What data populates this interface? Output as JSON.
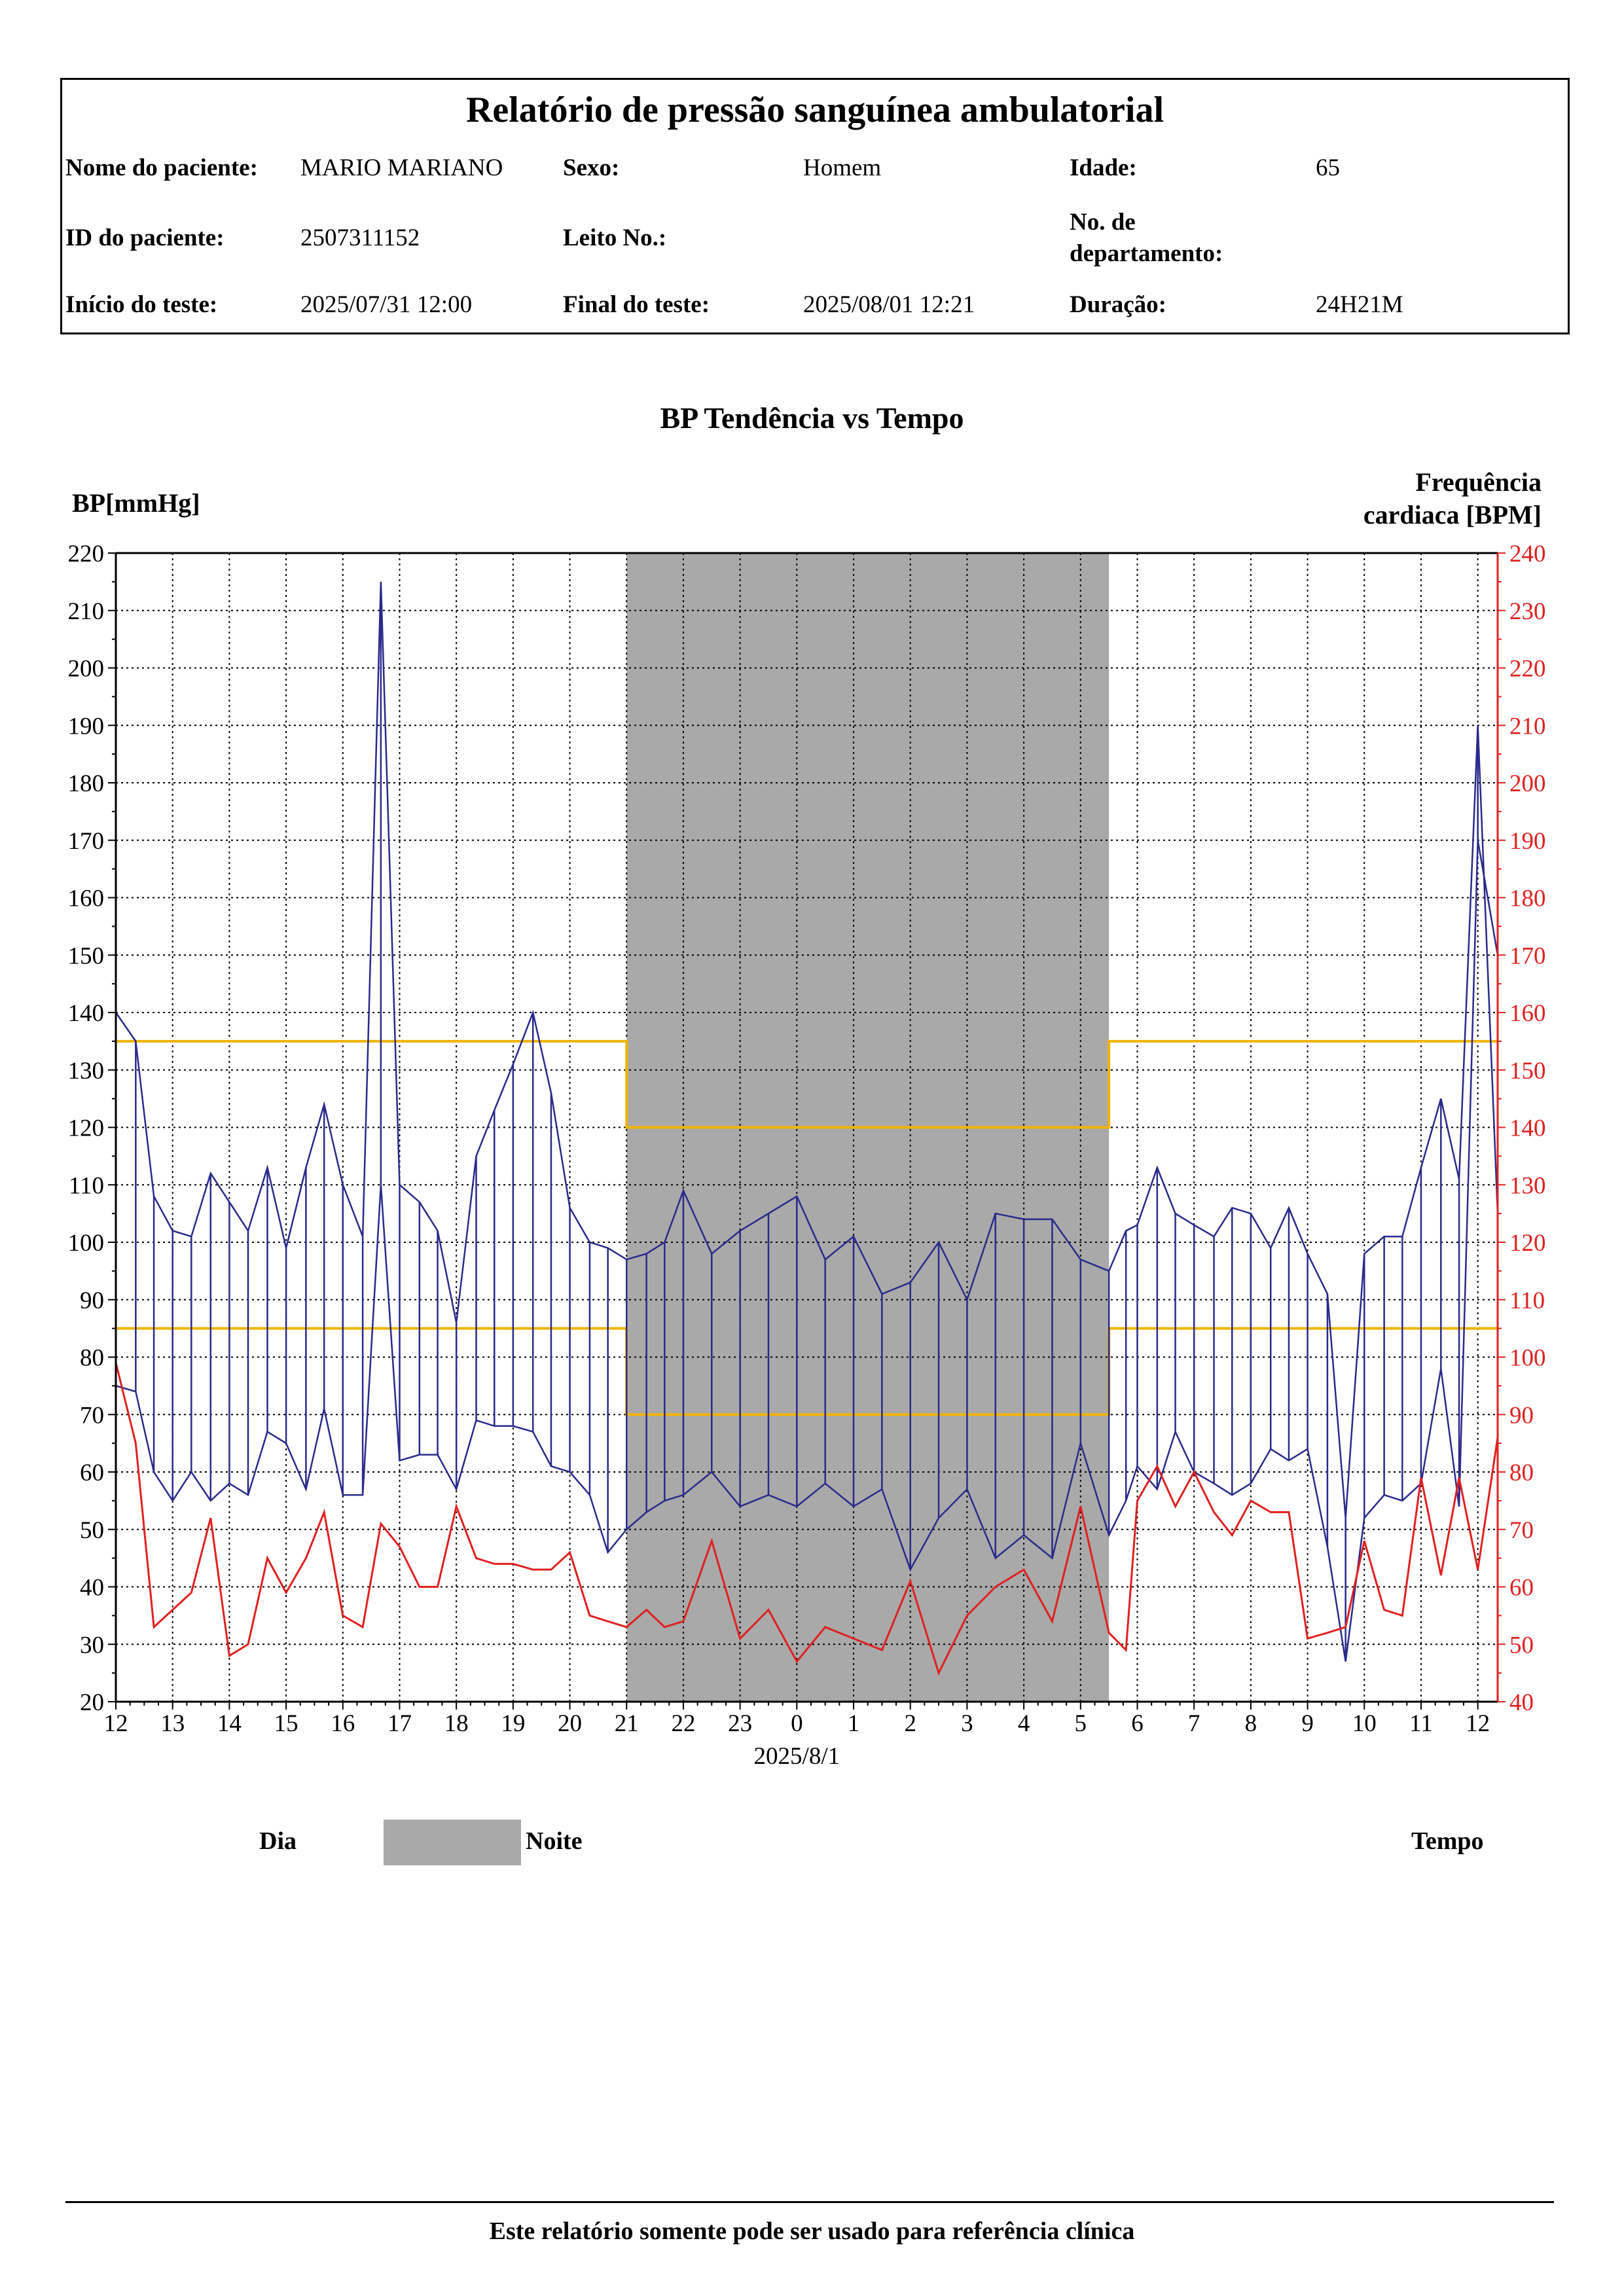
{
  "report": {
    "title": "Relatório de pressão sanguínea ambulatorial",
    "patient_name_label": "Nome do paciente:",
    "patient_name": "MARIO MARIANO",
    "sex_label": "Sexo:",
    "sex": "Homem",
    "age_label": "Idade:",
    "age": "65",
    "patient_id_label": "ID do paciente:",
    "patient_id": "2507311152",
    "bed_label": "Leito No.:",
    "bed": "",
    "department_label_1": "No. de",
    "department_label_2": "departamento:",
    "department": "",
    "start_label": "Início do teste:",
    "start": "2025/07/31 12:00",
    "end_label": "Final do teste:",
    "end": "2025/08/01 12:21",
    "duration_label": "Duração:",
    "duration": "24H21M"
  },
  "chart_data": {
    "type": "line",
    "title": "BP Tendência vs Tempo",
    "ylabel": "BP[mmHg]",
    "ylabel_right_1": "Frequência",
    "ylabel_right_2": "cardiaca [BPM]",
    "xlabel": "Tempo",
    "date_label": "2025/8/1",
    "ylim": [
      20,
      220
    ],
    "ylim_right": [
      40,
      240
    ],
    "xlim": [
      0,
      24.35
    ],
    "x_ticks": [
      "12",
      "13",
      "14",
      "15",
      "16",
      "17",
      "18",
      "19",
      "20",
      "21",
      "22",
      "23",
      "0",
      "1",
      "2",
      "3",
      "4",
      "5",
      "6",
      "7",
      "8",
      "9",
      "10",
      "11",
      "12"
    ],
    "y_ticks": [
      20,
      30,
      40,
      50,
      60,
      70,
      80,
      90,
      100,
      110,
      120,
      130,
      140,
      150,
      160,
      170,
      180,
      190,
      200,
      210,
      220
    ],
    "y_ticks_right": [
      40,
      50,
      60,
      70,
      80,
      90,
      100,
      110,
      120,
      130,
      140,
      150,
      160,
      170,
      180,
      190,
      200,
      210,
      220,
      230,
      240
    ],
    "grid": true,
    "night_band": [
      9.0,
      17.5
    ],
    "thresholds": {
      "day_systolic": 135,
      "day_diastolic": 85,
      "night_systolic": 120,
      "night_diastolic": 70
    },
    "colors": {
      "bp": "#2a2a8c",
      "hr": "#e02020",
      "threshold": "#f0b400",
      "night": "#a9a9a9",
      "right_axis": "#e02020"
    },
    "series": [
      {
        "key": "systolic",
        "x": [
          0,
          0.35,
          0.67,
          1.0,
          1.33,
          1.67,
          2.0,
          2.33,
          2.67,
          3.0,
          3.35,
          3.67,
          4.0,
          4.35,
          4.67,
          5.0,
          5.35,
          5.67,
          6.0,
          6.35,
          6.67,
          7.0,
          7.35,
          7.67,
          8.0,
          8.35,
          8.67,
          9.0,
          9.35,
          9.67,
          10.0,
          10.5,
          11.0,
          11.5,
          12.0,
          12.5,
          13.0,
          13.5,
          14.0,
          14.5,
          15.0,
          15.5,
          16.0,
          16.5,
          17.0,
          17.5,
          17.8,
          18.0,
          18.35,
          18.67,
          19.0,
          19.35,
          19.67,
          20.0,
          20.35,
          20.67,
          21.0,
          21.35,
          21.67,
          22.0,
          22.35,
          22.67,
          23.0,
          23.35,
          23.67,
          24.0,
          24.35
        ],
        "values": [
          140,
          135,
          108,
          102,
          101,
          112,
          107,
          102,
          113,
          99,
          113,
          124,
          110,
          101,
          215,
          110,
          107,
          102,
          86,
          115,
          123,
          131,
          140,
          126,
          106,
          100,
          99,
          97,
          98,
          100,
          109,
          98,
          102,
          105,
          108,
          97,
          101,
          91,
          93,
          100,
          90,
          105,
          104,
          104,
          97,
          95,
          102,
          103,
          113,
          105,
          103,
          101,
          106,
          105,
          99,
          106,
          98,
          91,
          52,
          98,
          101,
          101,
          113,
          125,
          111,
          190,
          105
        ]
      },
      {
        "key": "diastolic",
        "x": [
          0,
          0.35,
          0.67,
          1.0,
          1.33,
          1.67,
          2.0,
          2.33,
          2.67,
          3.0,
          3.35,
          3.67,
          4.0,
          4.35,
          4.67,
          5.0,
          5.35,
          5.67,
          6.0,
          6.35,
          6.67,
          7.0,
          7.35,
          7.67,
          8.0,
          8.35,
          8.67,
          9.0,
          9.35,
          9.67,
          10.0,
          10.5,
          11.0,
          11.5,
          12.0,
          12.5,
          13.0,
          13.5,
          14.0,
          14.5,
          15.0,
          15.5,
          16.0,
          16.5,
          17.0,
          17.5,
          17.8,
          18.0,
          18.35,
          18.67,
          19.0,
          19.35,
          19.67,
          20.0,
          20.35,
          20.67,
          21.0,
          21.35,
          21.67,
          22.0,
          22.35,
          22.67,
          23.0,
          23.35,
          23.67,
          24.0,
          24.35
        ],
        "values": [
          75,
          74,
          60,
          55,
          60,
          55,
          58,
          56,
          67,
          65,
          57,
          71,
          56,
          56,
          110,
          62,
          63,
          63,
          57,
          69,
          68,
          68,
          67,
          61,
          60,
          56,
          46,
          50,
          53,
          55,
          56,
          60,
          54,
          56,
          54,
          58,
          54,
          57,
          43,
          52,
          57,
          45,
          49,
          45,
          65,
          49,
          55,
          61,
          57,
          67,
          60,
          58,
          56,
          58,
          64,
          62,
          64,
          47,
          27,
          52,
          56,
          55,
          58,
          78,
          54,
          170,
          150
        ]
      },
      {
        "key": "heart_rate",
        "x": [
          0,
          0.35,
          0.67,
          1.0,
          1.33,
          1.67,
          2.0,
          2.33,
          2.67,
          3.0,
          3.35,
          3.67,
          4.0,
          4.35,
          4.67,
          5.0,
          5.35,
          5.67,
          6.0,
          6.35,
          6.67,
          7.0,
          7.35,
          7.67,
          8.0,
          8.35,
          8.67,
          9.0,
          9.35,
          9.67,
          10.0,
          10.5,
          11.0,
          11.5,
          12.0,
          12.5,
          13.0,
          13.5,
          14.0,
          14.5,
          15.0,
          15.5,
          16.0,
          16.5,
          17.0,
          17.5,
          17.8,
          18.0,
          18.35,
          18.67,
          19.0,
          19.35,
          19.67,
          20.0,
          20.35,
          20.67,
          21.0,
          21.35,
          21.67,
          22.0,
          22.35,
          22.67,
          23.0,
          23.35,
          23.67,
          24.0,
          24.35
        ],
        "values": [
          99,
          85,
          53,
          56,
          59,
          72,
          48,
          50,
          65,
          59,
          65,
          73,
          55,
          53,
          71,
          67,
          60,
          60,
          74,
          65,
          64,
          64,
          63,
          63,
          66,
          55,
          54,
          53,
          56,
          53,
          54,
          68,
          51,
          56,
          47,
          53,
          51,
          49,
          61,
          45,
          55,
          60,
          63,
          54,
          74,
          52,
          49,
          75,
          81,
          74,
          80,
          73,
          69,
          75,
          73,
          73,
          51,
          52,
          53,
          68,
          56,
          55,
          79,
          62,
          79,
          63,
          86
        ]
      }
    ],
    "legend": {
      "day": "Dia",
      "night": "Noite"
    }
  },
  "footer": {
    "note": "Este relatório somente pode ser usado para referência clínica"
  }
}
